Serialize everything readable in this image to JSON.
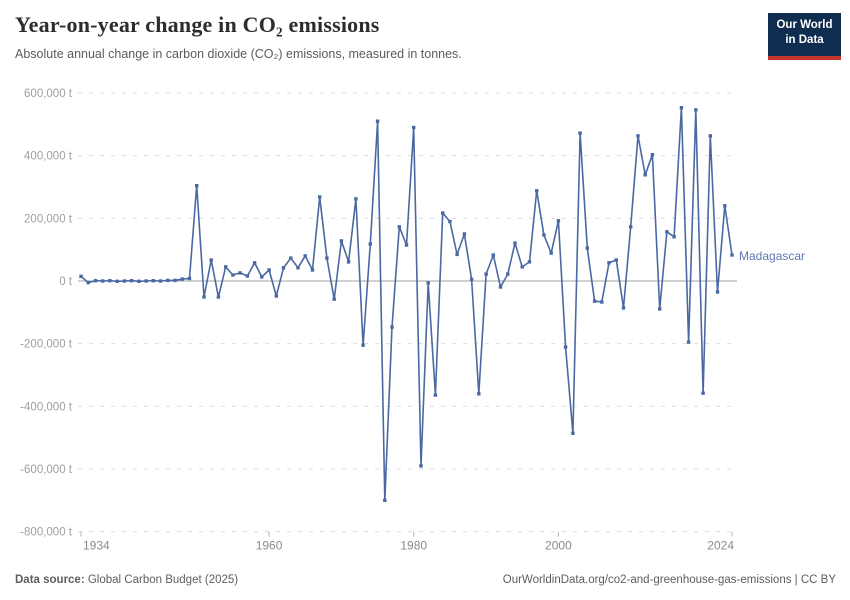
{
  "header": {
    "title": "Year-on-year change in CO₂ emissions",
    "subtitle": "Absolute annual change in carbon dioxide (CO₂) emissions, measured in tonnes."
  },
  "logo": {
    "line1": "Our World",
    "line2": "in Data",
    "bg_color": "#0f2e4f",
    "stripe_color": "#c5352c"
  },
  "footer": {
    "data_source_label": "Data source:",
    "data_source_value": " Global Carbon Budget (2025)",
    "credit": "OurWorldinData.org/co2-and-greenhouse-gas-emissions | CC BY"
  },
  "chart_data": {
    "type": "line",
    "title": "Year-on-year change in CO₂ emissions",
    "unit": "t",
    "entity_label": "Madagascar",
    "line_color": "#4a69a2",
    "label_color": "#5b79b5",
    "grid_color": "#dcdcdc",
    "zero_line_color": "#a3a3a3",
    "legend_position": "right-of-line",
    "grid": true,
    "xlim": [
      1933,
      2025
    ],
    "ylim": [
      -800000,
      600000
    ],
    "y_ticks": [
      {
        "value": 600000,
        "label": "600,000 t"
      },
      {
        "value": 400000,
        "label": "400,000 t"
      },
      {
        "value": 200000,
        "label": "200,000 t"
      },
      {
        "value": 0,
        "label": "0 t"
      },
      {
        "value": -200000,
        "label": "-200,000 t"
      },
      {
        "value": -400000,
        "label": "-400,000 t"
      },
      {
        "value": -600000,
        "label": "-600,000 t"
      },
      {
        "value": -800000,
        "label": "-800,000 t"
      }
    ],
    "x_ticks": [
      {
        "value": 1934,
        "label": "1934"
      },
      {
        "value": 1960,
        "label": "1960"
      },
      {
        "value": 1980,
        "label": "1980"
      },
      {
        "value": 2000,
        "label": "2000"
      },
      {
        "value": 2024,
        "label": "2024"
      }
    ],
    "series": [
      {
        "name": "Madagascar",
        "years": [
          1934,
          1935,
          1936,
          1937,
          1938,
          1939,
          1940,
          1941,
          1942,
          1943,
          1944,
          1945,
          1946,
          1947,
          1948,
          1949,
          1950,
          1951,
          1952,
          1953,
          1954,
          1955,
          1956,
          1957,
          1958,
          1959,
          1960,
          1961,
          1962,
          1963,
          1964,
          1965,
          1966,
          1967,
          1968,
          1969,
          1970,
          1971,
          1972,
          1973,
          1974,
          1975,
          1976,
          1977,
          1978,
          1979,
          1980,
          1981,
          1982,
          1983,
          1984,
          1985,
          1986,
          1987,
          1988,
          1989,
          1990,
          1991,
          1992,
          1993,
          1994,
          1995,
          1996,
          1997,
          1998,
          1999,
          2000,
          2001,
          2002,
          2003,
          2004,
          2005,
          2006,
          2007,
          2008,
          2009,
          2010,
          2011,
          2012,
          2013,
          2014,
          2015,
          2016,
          2017,
          2018,
          2019,
          2020,
          2021,
          2022,
          2023,
          2024
        ],
        "values": [
          15000,
          -5000,
          1000,
          0,
          1000,
          -1000,
          0,
          1000,
          -1000,
          0,
          1000,
          0,
          2000,
          2000,
          6000,
          8000,
          304000,
          -51000,
          67000,
          -51000,
          45000,
          19000,
          26000,
          16000,
          58000,
          13000,
          35000,
          -48000,
          42000,
          73000,
          42000,
          80000,
          35000,
          268000,
          73000,
          -58000,
          128000,
          61000,
          262000,
          -205000,
          118000,
          510000,
          -700000,
          -147000,
          173000,
          115000,
          490000,
          -590000,
          -6000,
          -364000,
          217000,
          190000,
          85000,
          150000,
          5000,
          -360000,
          22000,
          83000,
          -19000,
          22000,
          121000,
          45000,
          61000,
          288000,
          147000,
          89000,
          192000,
          -211000,
          -486000,
          472000,
          105000,
          -64000,
          -67000,
          58000,
          67000,
          -86000,
          173000,
          463000,
          339000,
          403000,
          -89000,
          157000,
          141000,
          553000,
          -195000,
          546000,
          -358000,
          463000,
          -35000,
          240000,
          83000
        ]
      }
    ]
  }
}
